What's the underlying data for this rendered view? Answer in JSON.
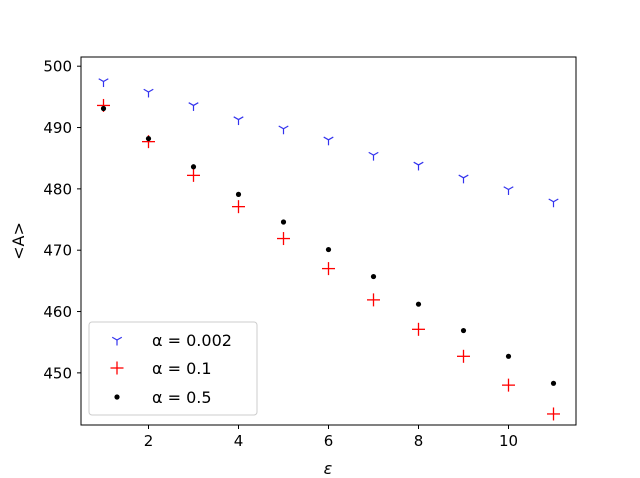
{
  "chart_data": {
    "type": "scatter",
    "title": "",
    "xlabel": "ε",
    "ylabel": "<A>",
    "xlim": [
      0.5,
      11.5
    ],
    "ylim": [
      441.5,
      501.5
    ],
    "xticks": [
      2,
      4,
      6,
      8,
      10
    ],
    "yticks": [
      450,
      460,
      470,
      480,
      490,
      500
    ],
    "grid": false,
    "legend_position": "lower-left",
    "x": [
      1,
      2,
      3,
      4,
      5,
      6,
      7,
      8,
      9,
      10,
      11
    ],
    "series": [
      {
        "name": "α = 0.002",
        "marker": "tri-down",
        "color": "#3333ee",
        "values": [
          497.5,
          495.8,
          493.6,
          491.3,
          489.8,
          488.0,
          485.5,
          483.9,
          481.8,
          479.9,
          477.9
        ]
      },
      {
        "name": "α = 0.1",
        "marker": "plus",
        "color": "#ff0000",
        "values": [
          493.6,
          487.7,
          482.2,
          477.1,
          471.9,
          467.0,
          461.9,
          457.1,
          452.7,
          448.0,
          443.3
        ]
      },
      {
        "name": "α = 0.5",
        "marker": "dot",
        "color": "#000000",
        "values": [
          493.1,
          488.2,
          483.6,
          479.1,
          474.6,
          470.1,
          465.7,
          461.2,
          456.9,
          452.7,
          448.3
        ]
      }
    ]
  }
}
